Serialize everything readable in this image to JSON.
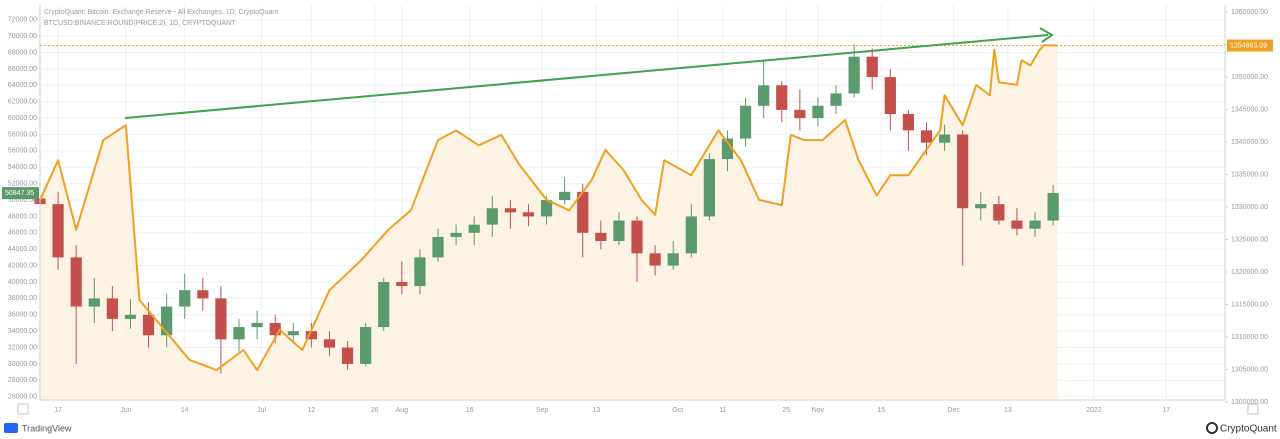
{
  "chart_data": {
    "type": "candlestick",
    "title": "CryptoQuant: Bitcoin: Exchange Reserve - All Exchanges, 1D, CryptoQuant",
    "subtitle": "BTCUSD:BINANCE:ROUND(PRICE,2), 1D, CRYPTOQUANT",
    "brand_left": "TradingView",
    "brand_right": "CryptoQuant",
    "grid": true,
    "xlim": [
      0,
      262
    ],
    "xticks": [
      {
        "value": 4,
        "label": "17"
      },
      {
        "value": 19,
        "label": "Jun"
      },
      {
        "value": 32,
        "label": "14"
      },
      {
        "value": 49,
        "label": "Jul"
      },
      {
        "value": 60,
        "label": "12"
      },
      {
        "value": 74,
        "label": "26"
      },
      {
        "value": 80,
        "label": "Aug"
      },
      {
        "value": 95,
        "label": "16"
      },
      {
        "value": 111,
        "label": "Sep"
      },
      {
        "value": 123,
        "label": "13"
      },
      {
        "value": 141,
        "label": "Oct"
      },
      {
        "value": 151,
        "label": "11"
      },
      {
        "value": 165,
        "label": "25"
      },
      {
        "value": 172,
        "label": "Nov"
      },
      {
        "value": 186,
        "label": "15"
      },
      {
        "value": 202,
        "label": "Dec"
      },
      {
        "value": 214,
        "label": "13"
      },
      {
        "value": 233,
        "label": "2022"
      },
      {
        "value": 249,
        "label": "17"
      }
    ],
    "ylim": [
      25600,
      73800
    ],
    "yticks": [
      {
        "value": 72000,
        "label": "72000.00"
      },
      {
        "value": 70000,
        "label": "70000.00"
      },
      {
        "value": 68000,
        "label": "68000.00"
      },
      {
        "value": 66000,
        "label": "66000.00"
      },
      {
        "value": 64000,
        "label": "64000.00"
      },
      {
        "value": 62000,
        "label": "62000.00"
      },
      {
        "value": 60000,
        "label": "60000.00"
      },
      {
        "value": 58000,
        "label": "58000.00"
      },
      {
        "value": 56000,
        "label": "56000.00"
      },
      {
        "value": 54000,
        "label": "54000.00"
      },
      {
        "value": 52000,
        "label": "52000.00"
      },
      {
        "value": 50000,
        "label": "50000.00"
      },
      {
        "value": 48000,
        "label": "48000.00"
      },
      {
        "value": 46000,
        "label": "46000.00"
      },
      {
        "value": 44000,
        "label": "44000.00"
      },
      {
        "value": 42000,
        "label": "42000.00"
      },
      {
        "value": 40000,
        "label": "40000.00"
      },
      {
        "value": 38000,
        "label": "38000.00"
      },
      {
        "value": 36000,
        "label": "36000.00"
      },
      {
        "value": 34000,
        "label": "34000.00"
      },
      {
        "value": 32000,
        "label": "32000.00"
      },
      {
        "value": 30000,
        "label": "30000.00"
      },
      {
        "value": 28000,
        "label": "28000.00"
      },
      {
        "value": 26000,
        "label": "26000.00"
      }
    ],
    "y2lim": [
      1300300,
      1361100
    ],
    "y2ticks": [
      {
        "value": 1360000,
        "label": "1360000.00"
      },
      {
        "value": 1355000,
        "label": "1355000.00"
      },
      {
        "value": 1350000,
        "label": "1350000.00"
      },
      {
        "value": 1345000,
        "label": "1345000.00"
      },
      {
        "value": 1340000,
        "label": "1340000.00"
      },
      {
        "value": 1335000,
        "label": "1335000.00"
      },
      {
        "value": 1330000,
        "label": "1330000.00"
      },
      {
        "value": 1325000,
        "label": "1325000.00"
      },
      {
        "value": 1320000,
        "label": "1320000.00"
      },
      {
        "value": 1315000,
        "label": "1315000.00"
      },
      {
        "value": 1310000,
        "label": "1310000.00"
      },
      {
        "value": 1305000,
        "label": "1305000.00"
      },
      {
        "value": 1300000,
        "label": "1300000.00"
      }
    ],
    "candles": {
      "up_color": "#5a9a6c",
      "down_color": "#c4504c",
      "x": [
        0,
        4,
        8,
        12,
        16,
        20,
        24,
        28,
        32,
        36,
        40,
        44,
        48,
        52,
        56,
        60,
        64,
        68,
        72,
        76,
        80,
        84,
        88,
        92,
        96,
        100,
        104,
        108,
        112,
        116,
        120,
        124,
        128,
        132,
        136,
        140,
        144,
        148,
        152,
        156,
        160,
        164,
        168,
        172,
        176,
        180,
        184,
        188,
        192,
        196,
        200,
        204,
        208,
        212,
        216,
        220,
        224
      ],
      "open": [
        50200,
        49500,
        43000,
        37000,
        38000,
        35500,
        36000,
        33500,
        37000,
        39000,
        38000,
        33000,
        34500,
        35000,
        33500,
        34000,
        33000,
        32000,
        30000,
        34500,
        40000,
        39500,
        43000,
        45500,
        46000,
        47000,
        49000,
        48500,
        48000,
        50000,
        51000,
        46000,
        45000,
        47500,
        43500,
        42000,
        43500,
        48000,
        55000,
        57500,
        61500,
        64000,
        61000,
        60000,
        61500,
        63000,
        67500,
        65000,
        60500,
        58500,
        57000,
        58000,
        49000,
        49500,
        47500,
        46500,
        47500
      ],
      "high": [
        51700,
        51000,
        44500,
        40500,
        39500,
        37900,
        37500,
        38500,
        41000,
        40500,
        39500,
        35500,
        36500,
        36000,
        35000,
        35000,
        34000,
        32800,
        35000,
        40500,
        42500,
        44000,
        46500,
        47000,
        48000,
        50500,
        50000,
        49500,
        50500,
        52800,
        52000,
        47500,
        48500,
        48000,
        44500,
        45000,
        49500,
        55700,
        58500,
        62500,
        67000,
        64500,
        63500,
        62500,
        64000,
        69000,
        68500,
        66000,
        61000,
        59500,
        59200,
        58500,
        51000,
        50500,
        49000,
        48500,
        51800
      ],
      "low": [
        48000,
        41500,
        30000,
        35000,
        34000,
        34300,
        32000,
        32000,
        35500,
        36500,
        28800,
        31500,
        33000,
        32500,
        32500,
        32000,
        31000,
        29300,
        29700,
        34000,
        38500,
        38500,
        42500,
        44500,
        44500,
        45500,
        46500,
        46800,
        47000,
        49500,
        43000,
        44000,
        44500,
        40000,
        40800,
        41500,
        43000,
        47500,
        53500,
        56500,
        60000,
        59500,
        58500,
        59000,
        60500,
        62500,
        63500,
        58500,
        56000,
        55500,
        56000,
        42000,
        47500,
        47000,
        45700,
        45500,
        46900
      ],
      "close": [
        49500,
        43000,
        37000,
        38000,
        35500,
        36000,
        33500,
        37000,
        39000,
        38000,
        33000,
        34500,
        35000,
        33500,
        34000,
        33000,
        32000,
        30000,
        34500,
        40000,
        39500,
        43000,
        45500,
        46000,
        47000,
        49000,
        48500,
        48000,
        50000,
        51000,
        46000,
        45000,
        47500,
        43500,
        42000,
        43500,
        48000,
        55000,
        57500,
        61500,
        64000,
        61000,
        60000,
        61500,
        63000,
        67500,
        65000,
        60500,
        58500,
        57000,
        58000,
        49000,
        49500,
        47500,
        46500,
        47500,
        50847.35
      ]
    },
    "series": [
      {
        "color": "#f0a020",
        "fill": "#fdf3e4",
        "axis": "y2",
        "x": [
          0,
          4,
          8,
          14,
          19,
          22,
          33,
          39,
          45,
          48,
          53,
          58,
          64,
          71,
          77,
          82,
          88,
          92,
          97,
          102,
          106,
          112,
          117,
          122,
          125,
          129,
          133,
          136,
          138,
          144,
          150,
          155,
          159,
          164,
          166,
          169,
          173,
          178,
          181,
          185,
          188,
          192,
          199,
          200,
          204,
          207,
          210,
          211,
          212,
          216,
          217,
          219,
          221,
          222,
          225
        ],
        "values": [
          1331100,
          1337200,
          1326500,
          1340300,
          1342600,
          1315700,
          1306500,
          1304900,
          1308000,
          1304900,
          1311100,
          1308000,
          1317200,
          1321800,
          1326500,
          1329500,
          1340300,
          1341800,
          1339500,
          1341100,
          1336500,
          1331100,
          1329500,
          1334200,
          1338800,
          1335700,
          1331100,
          1328800,
          1337200,
          1334900,
          1341800,
          1337200,
          1331100,
          1330300,
          1341100,
          1340300,
          1340300,
          1343400,
          1337200,
          1331800,
          1334900,
          1334900,
          1341800,
          1347200,
          1342600,
          1348800,
          1347200,
          1354200,
          1349200,
          1348800,
          1352600,
          1351800,
          1354200,
          1354900,
          1354863.09
        ]
      }
    ]
  }
}
